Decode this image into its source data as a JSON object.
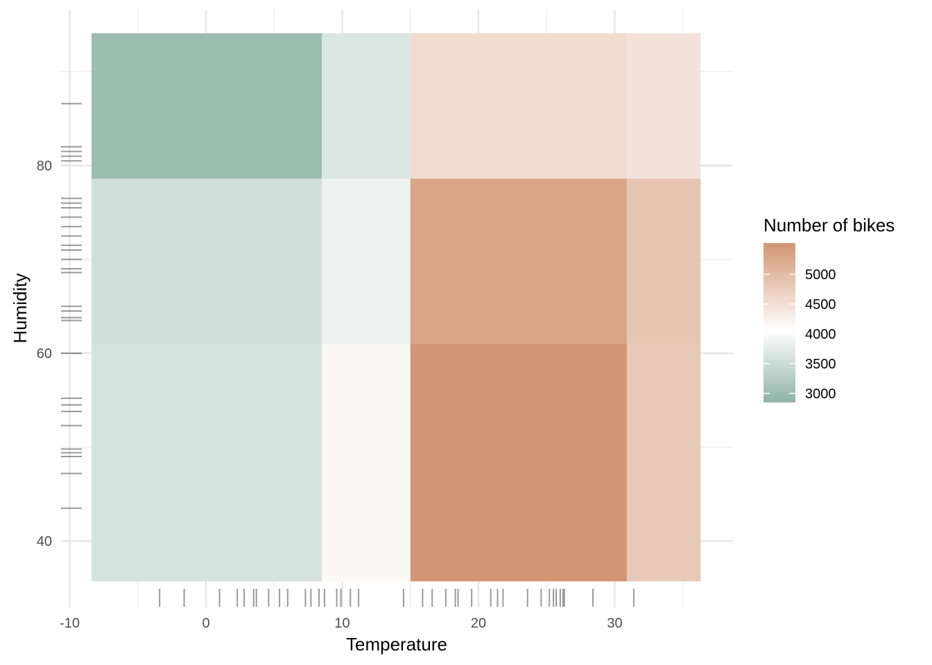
{
  "chart_data": {
    "type": "heatmap",
    "title": "",
    "xlabel": "Temperature",
    "ylabel": "Humidity",
    "xlim": [
      -10.5,
      38.5
    ],
    "ylim": [
      35,
      100
    ],
    "x_ticks": [
      -10,
      0,
      10,
      20,
      30
    ],
    "y_ticks": [
      40,
      60,
      80
    ],
    "x_tick_labels": [
      "-10",
      "0",
      "10",
      "20",
      "30"
    ],
    "y_tick_labels": [
      "40",
      "60",
      "80"
    ],
    "x_bins": [
      [
        -8.4,
        8.5
      ],
      [
        8.5,
        15.0
      ],
      [
        15.0,
        30.9
      ],
      [
        30.9,
        36.3
      ]
    ],
    "y_bins": [
      [
        35.7,
        61.0
      ],
      [
        61.0,
        78.6
      ],
      [
        78.6,
        94.1
      ]
    ],
    "values": [
      [
        3600,
        4150,
        5500,
        4800
      ],
      [
        3550,
        3850,
        5300,
        4850
      ],
      [
        3000,
        3650,
        4550,
        4450
      ]
    ],
    "legend": {
      "title": "Number of bikes",
      "ticks": [
        3000,
        3500,
        4000,
        4500,
        5000
      ],
      "tick_labels": [
        "3000",
        "3500",
        "4000",
        "4500",
        "5000"
      ],
      "range": [
        2850,
        5520
      ],
      "placement": "right"
    },
    "colors": {
      "low": "#8fb3a6",
      "mid": "#ffffff",
      "high": "#d29573",
      "midpoint": 4050
    },
    "rug_x": [
      -3.4,
      -1.6,
      1.0,
      2.3,
      2.8,
      3.5,
      3.7,
      4.6,
      5.4,
      6.0,
      7.3,
      7.7,
      8.3,
      8.7,
      9.6,
      9.9,
      10.6,
      11.2,
      14.5,
      15.9,
      16.6,
      17.6,
      18.3,
      18.5,
      19.5,
      20.9,
      21.4,
      21.8,
      23.6,
      24.6,
      25.2,
      25.5,
      25.7,
      26.0,
      26.2,
      26.3,
      28.4,
      31.4
    ],
    "rug_y": [
      43.5,
      47.2,
      49.0,
      49.4,
      49.8,
      52.3,
      53.8,
      54.5,
      55.2,
      60.0,
      63.5,
      63.8,
      64.5,
      65.0,
      68.6,
      69.0,
      70.0,
      71.0,
      71.5,
      72.5,
      73.5,
      74.5,
      75.5,
      76.0,
      76.5,
      80.5,
      81.0,
      81.5,
      82.0,
      86.6
    ]
  }
}
